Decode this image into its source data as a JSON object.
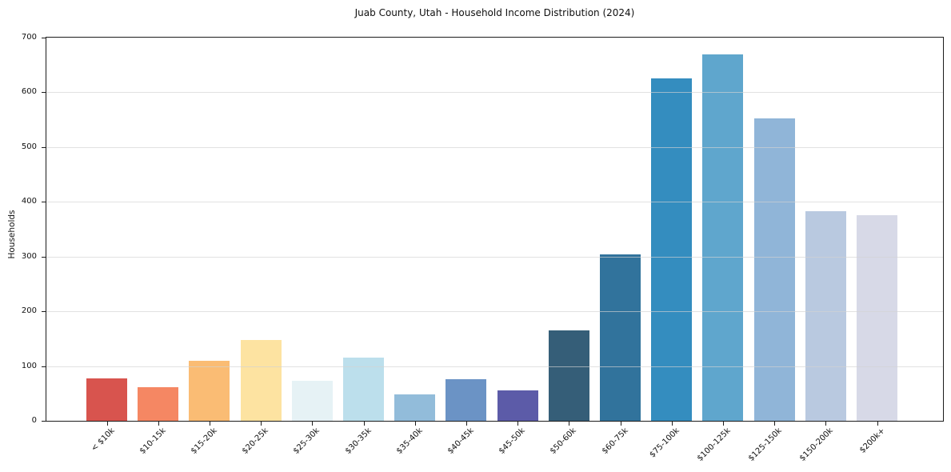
{
  "title": "Juab County, Utah - Household Income Distribution (2024)",
  "chart_data": {
    "type": "bar",
    "title": "Juab County, Utah - Household Income Distribution (2024)",
    "xlabel": "",
    "ylabel": "Households",
    "ylim": [
      0,
      700
    ],
    "yticks": [
      0,
      100,
      200,
      300,
      400,
      500,
      600,
      700
    ],
    "grid": "horizontal-light-over-bars",
    "legend": "none",
    "categories": [
      "< $10k",
      "$10-15k",
      "$15-20k",
      "$20-25k",
      "$25-30k",
      "$30-35k",
      "$35-40k",
      "$40-45k",
      "$45-50k",
      "$50-60k",
      "$60-75k",
      "$75-100k",
      "$100-125k",
      "$125-150k",
      "$150-200k",
      "$200k+"
    ],
    "values": [
      78,
      62,
      110,
      147,
      73,
      116,
      48,
      76,
      56,
      165,
      304,
      625,
      670,
      552,
      383,
      376
    ],
    "bar_colors": [
      "#d8544e",
      "#f58763",
      "#fabc74",
      "#fde3a1",
      "#e6f2f5",
      "#bcdfec",
      "#92bcda",
      "#6b93c5",
      "#5c5ba8",
      "#355e78",
      "#31739c",
      "#348dbf",
      "#5fa6cd",
      "#90b5d8",
      "#b9c9e0",
      "#d7d9e7"
    ]
  }
}
